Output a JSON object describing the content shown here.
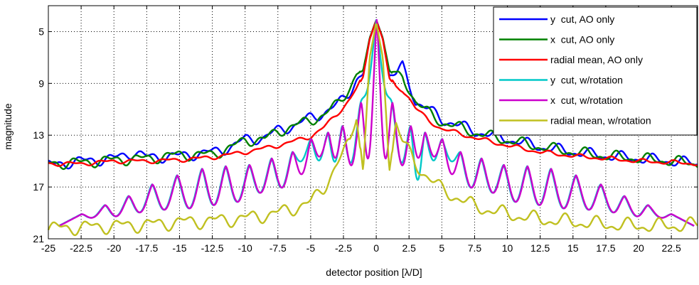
{
  "chart_data": {
    "type": "line",
    "xlabel": "detector position [λ/D]",
    "ylabel": "magnitude",
    "xlim": [
      -25,
      24.5
    ],
    "ylim": [
      3,
      21
    ],
    "y_inverted": true,
    "grid": true,
    "legend_position": "top-right",
    "xticks": [
      -25,
      -22.5,
      -20,
      -17.5,
      -15,
      -12.5,
      -10,
      -7.5,
      -5,
      -2.5,
      0,
      2.5,
      5,
      7.5,
      10,
      12.5,
      15,
      17.5,
      20,
      22.5
    ],
    "xtick_labels": [
      "-25",
      "-22.5",
      "-20",
      "-17.5",
      "-15",
      "-12.5",
      "-10",
      "-7.5",
      "-5",
      "-2.5",
      "0",
      "2.5",
      "5",
      "7.5",
      "10",
      "12.5",
      "15",
      "17.5",
      "20",
      "22.5"
    ],
    "yticks": [
      5,
      9,
      13,
      17,
      21
    ],
    "ytick_labels": [
      "5",
      "9",
      "13",
      "17",
      "21"
    ],
    "series": [
      {
        "name": "y  cut, AO only",
        "color": "#0000ff",
        "x": [
          -25,
          -22.5,
          -20,
          -18.5,
          -17.5,
          -15,
          -12.5,
          -11,
          -10,
          -8.5,
          -7.5,
          -6,
          -5,
          -4,
          -3,
          -2,
          -1.5,
          -1,
          -0.5,
          0,
          0.5,
          1,
          1.5,
          2,
          2.5,
          3,
          4,
          5,
          6,
          7.5,
          10,
          12.5,
          15,
          17.5,
          20,
          22.5,
          24.5
        ],
        "y": [
          15.3,
          15.0,
          14.8,
          14.3,
          14.7,
          14.6,
          14.3,
          13.9,
          13.3,
          13.2,
          12.6,
          12.2,
          11.6,
          11.3,
          10.7,
          9.6,
          8.7,
          8.3,
          5.5,
          4.1,
          5.5,
          8.4,
          8.3,
          7.7,
          9.0,
          10.4,
          11.0,
          11.8,
          12.1,
          12.7,
          13.3,
          13.9,
          14.3,
          14.6,
          14.8,
          15.0,
          15.2
        ]
      },
      {
        "name": "x  cut, AO only",
        "color": "#008000",
        "x": [
          -25,
          -22.5,
          -20,
          -17.5,
          -15,
          -12.5,
          -11,
          -10,
          -8.5,
          -7.5,
          -6,
          -5,
          -4,
          -3,
          -2,
          -1.5,
          -1,
          -0.5,
          0,
          0.5,
          1,
          1.5,
          2,
          2.5,
          3,
          4,
          5,
          6,
          7.5,
          10,
          12.5,
          15,
          17.5,
          20,
          22.5,
          24.5
        ],
        "y": [
          15.2,
          15.1,
          14.9,
          14.8,
          14.5,
          14.5,
          13.9,
          13.4,
          13.3,
          12.7,
          12.2,
          11.8,
          11.5,
          10.6,
          9.3,
          8.3,
          8.0,
          5.5,
          4.1,
          5.5,
          8.0,
          8.5,
          8.5,
          9.4,
          10.4,
          11.3,
          12.0,
          12.3,
          12.8,
          13.4,
          13.9,
          14.3,
          14.6,
          14.8,
          15.0,
          15.2
        ]
      },
      {
        "name": "radial mean, AO only",
        "color": "#ff0000",
        "x": [
          -25,
          -22.5,
          -20,
          -17.5,
          -15,
          -12.5,
          -10,
          -7.5,
          -5,
          -4,
          -3,
          -2,
          -1.5,
          -1,
          -0.5,
          0,
          0.5,
          1,
          1.5,
          2,
          2.5,
          3,
          4,
          5,
          7.5,
          10,
          12.5,
          15,
          17.5,
          20,
          22.5,
          24.5
        ],
        "y": [
          15.2,
          15.2,
          15.0,
          15.0,
          14.9,
          14.7,
          14.3,
          13.8,
          13.1,
          12.4,
          11.4,
          10.2,
          9.4,
          8.5,
          5.6,
          4.1,
          5.6,
          8.6,
          9.3,
          9.5,
          10.1,
          10.9,
          11.9,
          12.5,
          13.2,
          13.8,
          14.3,
          14.6,
          14.8,
          15.0,
          15.1,
          15.2
        ],
        "fluct": 0.12
      },
      {
        "name": "y  cut, w/rotation",
        "color": "#00c8c8",
        "base_x": [
          -25,
          -20,
          -15,
          -10,
          -7.5,
          -5,
          -3,
          -2,
          -1.5,
          0,
          1.5,
          2,
          3,
          5,
          7.5,
          10,
          15,
          20,
          24.5
        ],
        "base_y": [
          19.6,
          19.4,
          19.0,
          18.2,
          17.6,
          16.6,
          15.0,
          13.0,
          11.5,
          4.1,
          11.5,
          13.0,
          15.0,
          16.6,
          17.6,
          18.2,
          19.0,
          19.4,
          19.6
        ],
        "peak_x": [
          -24.2,
          -22.5,
          -20.7,
          -18.9,
          -17.1,
          -15.2,
          -13.3,
          -11.5,
          -9.7,
          -8.0,
          -6.4,
          -5.0,
          -3.7,
          -2.6,
          -1.2,
          0,
          1.2,
          2.6,
          3.7,
          5.0,
          6.4,
          8.0,
          9.7,
          11.5,
          13.3,
          15.2,
          17.1,
          18.9,
          20.7,
          22.5,
          24.2
        ],
        "peak_y": [
          20.0,
          19.1,
          18.4,
          17.7,
          16.8,
          16.1,
          15.6,
          15.4,
          15.3,
          14.8,
          14.3,
          13.3,
          12.8,
          12.3,
          10.5,
          4.1,
          10.5,
          12.3,
          12.8,
          13.3,
          14.3,
          14.8,
          15.3,
          15.4,
          15.6,
          16.1,
          16.8,
          17.7,
          18.4,
          19.1,
          20.0
        ],
        "valley_y": [
          20.0,
          19.7,
          19.6,
          19.4,
          19.1,
          18.9,
          18.5,
          18.2,
          17.7,
          17.3,
          15.5,
          15.2,
          15.3,
          16.0,
          12.3,
          12.3,
          16.0,
          16.7,
          15.2,
          15.5,
          17.3,
          17.7,
          18.2,
          18.5,
          18.9,
          19.1,
          19.4,
          19.6,
          19.7,
          20.0,
          20.0
        ],
        "dx": 0
      },
      {
        "name": "x  cut, w/rotation",
        "color": "#cc00cc",
        "base_x": [
          -25,
          -20,
          -15,
          -10,
          -7.5,
          -5,
          -3,
          -2,
          -1.5,
          0,
          1.5,
          2,
          3,
          5,
          7.5,
          10,
          15,
          20,
          24.5
        ],
        "base_y": [
          19.6,
          19.4,
          19.0,
          18.2,
          17.6,
          16.6,
          15.0,
          13.0,
          11.5,
          4.1,
          11.5,
          13.0,
          15.0,
          16.6,
          17.6,
          18.2,
          19.0,
          19.4,
          19.6
        ],
        "peak_x": [
          -24.2,
          -22.5,
          -20.7,
          -18.9,
          -17.1,
          -15.2,
          -13.3,
          -11.5,
          -9.7,
          -8.0,
          -6.4,
          -5.0,
          -3.7,
          -2.6,
          -1.2,
          0,
          1.2,
          2.6,
          3.7,
          5.0,
          6.4,
          8.0,
          9.7,
          11.5,
          13.3,
          15.2,
          17.1,
          18.9,
          20.7,
          22.5,
          24.2
        ],
        "peak_y": [
          20.0,
          19.1,
          18.4,
          17.7,
          16.8,
          16.1,
          15.6,
          15.4,
          15.3,
          14.8,
          14.3,
          13.3,
          12.8,
          12.3,
          10.5,
          4.1,
          10.5,
          12.3,
          12.8,
          13.3,
          14.3,
          14.8,
          15.3,
          15.4,
          15.6,
          16.1,
          16.8,
          17.7,
          18.4,
          19.1,
          20.0
        ],
        "valley_y": [
          20.0,
          19.7,
          19.6,
          19.4,
          19.1,
          18.9,
          18.5,
          18.2,
          17.7,
          17.3,
          16.5,
          14.9,
          15.0,
          16.2,
          17.8,
          17.8,
          16.2,
          15.0,
          14.9,
          16.5,
          17.3,
          17.7,
          18.2,
          18.5,
          18.9,
          19.1,
          19.4,
          19.6,
          19.7,
          20.0,
          20.0
        ],
        "dx": 0.04
      },
      {
        "name": "radial mean, w/rotation",
        "color": "#c0c020",
        "x": [
          -25,
          -22.5,
          -20,
          -17.5,
          -15,
          -12.5,
          -10,
          -7.5,
          -5,
          -4,
          -3,
          -2,
          -1.5,
          -1,
          -0.5,
          0,
          0.5,
          1,
          1.5,
          2,
          3,
          4,
          5,
          7.5,
          10,
          12.5,
          15,
          17.5,
          20,
          22.5,
          24.5
        ],
        "y": [
          20.2,
          20.1,
          20.0,
          19.9,
          19.7,
          19.6,
          19.4,
          19.0,
          18.2,
          17.0,
          15.3,
          13.5,
          11.2,
          15.8,
          7.0,
          4.3,
          7.0,
          15.8,
          12.0,
          13.5,
          15.2,
          16.3,
          17.2,
          18.5,
          19.1,
          19.5,
          19.7,
          19.9,
          20.0,
          20.0,
          19.9
        ]
      }
    ]
  }
}
